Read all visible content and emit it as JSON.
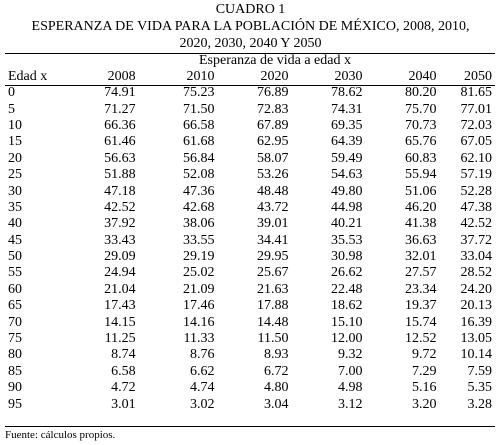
{
  "title": {
    "line1": "CUADRO 1",
    "line2": "ESPERANZA DE VIDA PARA LA POBLACIÓN DE MÉXICO, 2008, 2010,",
    "line3": "2020, 2030, 2040 Y 2050"
  },
  "table": {
    "group_header": "Esperanza de vida a edad x",
    "columns": [
      "Edad x",
      "2008",
      "2010",
      "2020",
      "2030",
      "2040",
      "2050"
    ],
    "rows": [
      [
        "0",
        "74.91",
        "75.23",
        "76.89",
        "78.62",
        "80.20",
        "81.65"
      ],
      [
        "5",
        "71.27",
        "71.50",
        "72.83",
        "74.31",
        "75.70",
        "77.01"
      ],
      [
        "10",
        "66.36",
        "66.58",
        "67.89",
        "69.35",
        "70.73",
        "72.03"
      ],
      [
        "15",
        "61.46",
        "61.68",
        "62.95",
        "64.39",
        "65.76",
        "67.05"
      ],
      [
        "20",
        "56.63",
        "56.84",
        "58.07",
        "59.49",
        "60.83",
        "62.10"
      ],
      [
        "25",
        "51.88",
        "52.08",
        "53.26",
        "54.63",
        "55.94",
        "57.19"
      ],
      [
        "30",
        "47.18",
        "47.36",
        "48.48",
        "49.80",
        "51.06",
        "52.28"
      ],
      [
        "35",
        "42.52",
        "42.68",
        "43.72",
        "44.98",
        "46.20",
        "47.38"
      ],
      [
        "40",
        "37.92",
        "38.06",
        "39.01",
        "40.21",
        "41.38",
        "42.52"
      ],
      [
        "45",
        "33.43",
        "33.55",
        "34.41",
        "35.53",
        "36.63",
        "37.72"
      ],
      [
        "50",
        "29.09",
        "29.19",
        "29.95",
        "30.98",
        "32.01",
        "33.04"
      ],
      [
        "55",
        "24.94",
        "25.02",
        "25.67",
        "26.62",
        "27.57",
        "28.52"
      ],
      [
        "60",
        "21.04",
        "21.09",
        "21.63",
        "22.48",
        "23.34",
        "24.20"
      ],
      [
        "65",
        "17.43",
        "17.46",
        "17.88",
        "18.62",
        "19.37",
        "20.13"
      ],
      [
        "70",
        "14.15",
        "14.16",
        "14.48",
        "15.10",
        "15.74",
        "16.39"
      ],
      [
        "75",
        "11.25",
        "11.33",
        "11.50",
        "12.00",
        "12.52",
        "13.05"
      ],
      [
        "80",
        "8.74",
        "8.76",
        "8.93",
        "9.32",
        "9.72",
        "10.14"
      ],
      [
        "85",
        "6.58",
        "6.62",
        "6.72",
        "7.00",
        "7.29",
        "7.59"
      ],
      [
        "90",
        "4.72",
        "4.74",
        "4.80",
        "4.98",
        "5.16",
        "5.35"
      ],
      [
        "95",
        "3.01",
        "3.02",
        "3.04",
        "3.12",
        "3.20",
        "3.28"
      ]
    ]
  },
  "footnote": "Fuente: cálculos propios."
}
